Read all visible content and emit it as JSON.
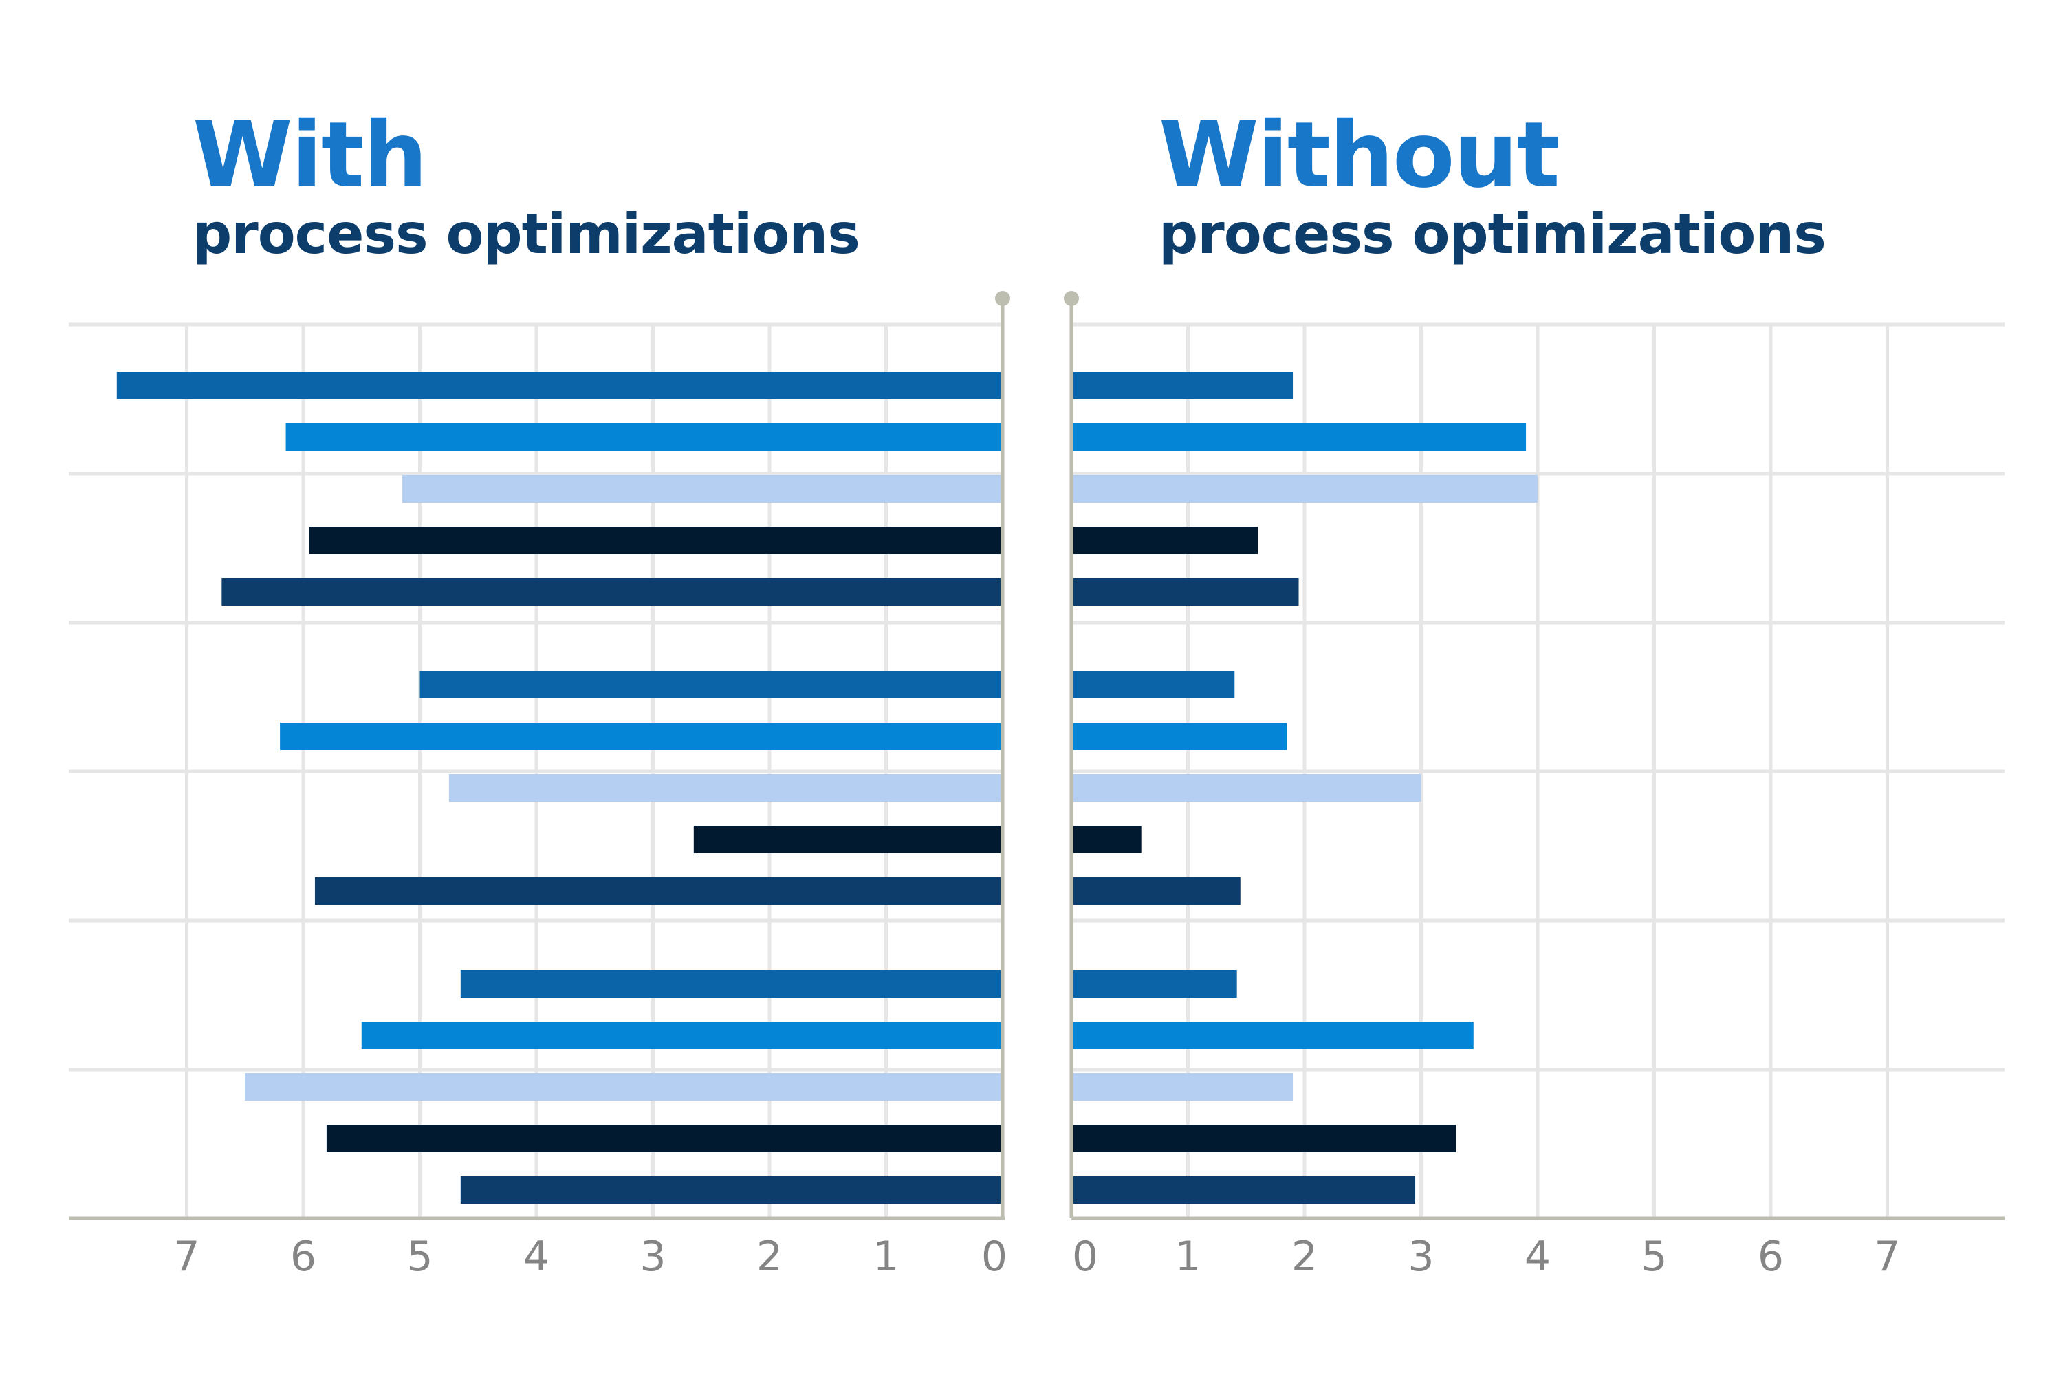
{
  "left_panel": {
    "title": "With",
    "subtitle": "process optimizations"
  },
  "right_panel": {
    "title": "Without",
    "subtitle": "process optimizations"
  },
  "colors": {
    "title": "#1877c9",
    "subtitle": "#0d3e6b",
    "axis": "#bdbdb0",
    "grid": "#e6e6e6",
    "tick_text": "#858585",
    "palette": [
      "#0b63a8",
      "#0585d6",
      "#b4cff2",
      "#021a30",
      "#0d3e6b"
    ]
  },
  "chart_data": [
    {
      "type": "bar",
      "orientation": "horizontal",
      "direction": "right-to-left",
      "title": "With",
      "subtitle": "process optimizations",
      "xlim": [
        0,
        8
      ],
      "xticks": [
        "0",
        "1",
        "2",
        "3",
        "4",
        "5",
        "6",
        "7"
      ],
      "grid": true,
      "groups": [
        {
          "values": [
            7.6,
            6.15,
            5.15,
            5.95,
            6.7
          ]
        },
        {
          "values": [
            5.0,
            6.2,
            4.75,
            2.65,
            5.9
          ]
        },
        {
          "values": [
            4.65,
            5.5,
            6.5,
            5.8,
            4.65
          ]
        }
      ]
    },
    {
      "type": "bar",
      "orientation": "horizontal",
      "direction": "left-to-right",
      "title": "Without",
      "subtitle": "process optimizations",
      "xlim": [
        0,
        8
      ],
      "xticks": [
        "0",
        "1",
        "2",
        "3",
        "4",
        "5",
        "6",
        "7"
      ],
      "grid": true,
      "groups": [
        {
          "values": [
            1.9,
            3.9,
            4.0,
            1.6,
            1.95
          ]
        },
        {
          "values": [
            1.4,
            1.85,
            3.0,
            0.6,
            1.45
          ]
        },
        {
          "values": [
            1.42,
            3.45,
            1.9,
            3.3,
            2.95
          ]
        }
      ]
    }
  ]
}
